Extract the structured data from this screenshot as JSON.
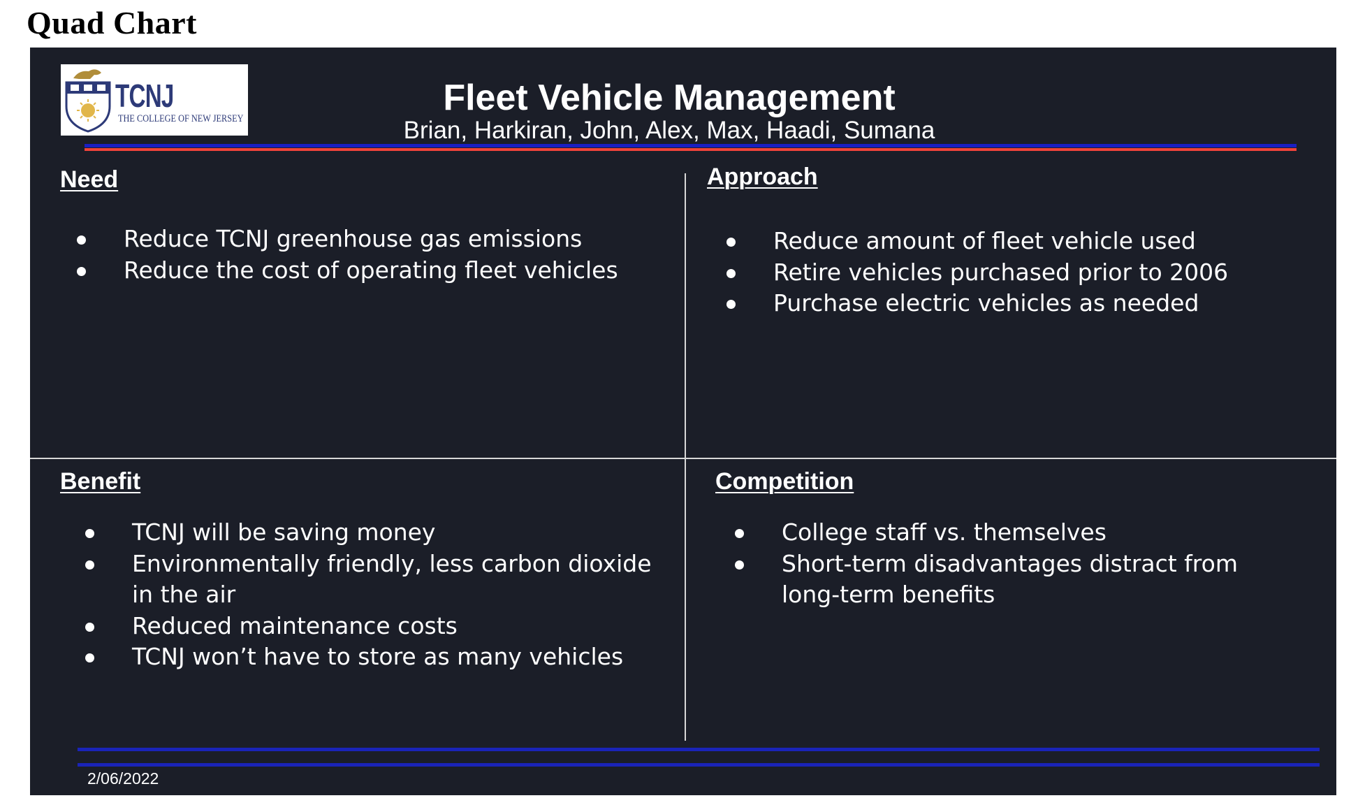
{
  "document": {
    "title": "Quad Chart"
  },
  "slide": {
    "logo": {
      "word": "TCNJ",
      "subtitle": "THE COLLEGE OF NEW JERSEY"
    },
    "title": "Fleet Vehicle Management",
    "subtitle": "Brian, Harkiran, John, Alex, Max, Haadi, Sumana",
    "quadrants": {
      "need": {
        "heading": "Need",
        "items": [
          "Reduce TCNJ greenhouse gas emissions",
          "Reduce the cost of operating fleet vehicles"
        ]
      },
      "approach": {
        "heading": "Approach",
        "items": [
          "Reduce amount of fleet vehicle used",
          "Retire vehicles purchased prior to 2006",
          "Purchase electric vehicles as needed"
        ]
      },
      "benefit": {
        "heading": "Benefit",
        "items": [
          "TCNJ will be saving money",
          "Environmentally friendly, less carbon dioxide in the air",
          "Reduced maintenance costs",
          "TCNJ won’t have to store as many vehicles"
        ]
      },
      "competition": {
        "heading": "Competition",
        "items": [
          "College staff vs. themselves",
          "Short-term disadvantages distract from long-term benefits"
        ]
      }
    },
    "date": "2/06/2022",
    "colors": {
      "background": "#1b1e28",
      "accent_blue": "#1a1fc2",
      "accent_red": "#f0433a",
      "logo_blue": "#2d3a78"
    }
  }
}
